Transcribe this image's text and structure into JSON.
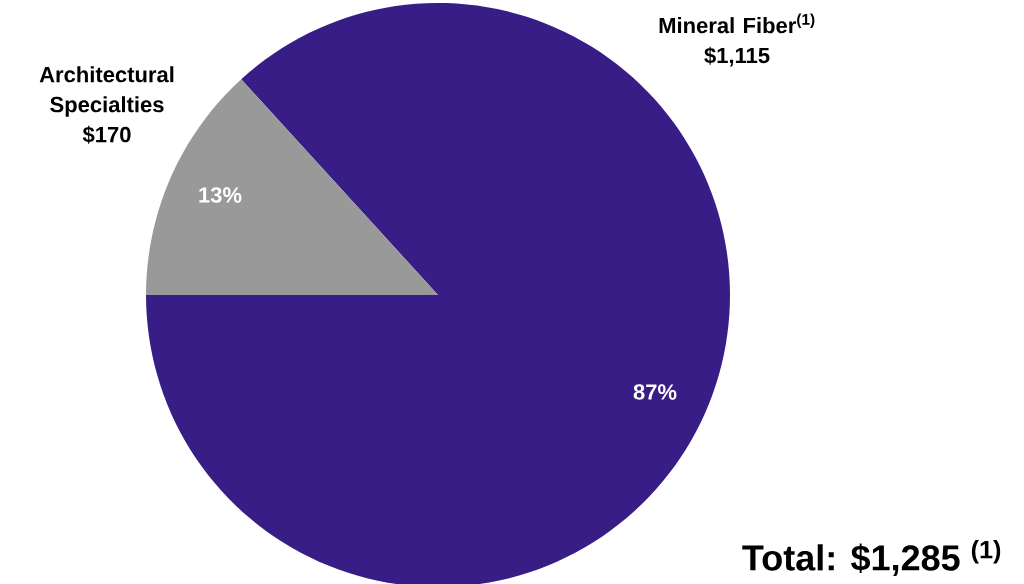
{
  "chart_data": {
    "type": "pie",
    "categories": [
      "Mineral Fiber$^{(1)}$",
      "Architectural Specialties"
    ],
    "values": [
      1115,
      170
    ],
    "value_labels": [
      "$1,115",
      "$170"
    ],
    "colors": [
      "#381d86",
      "#999999"
    ],
    "annotations": [
      "87%",
      "13%",
      "Total: $1,285 $^{(1)}$"
    ]
  }
}
